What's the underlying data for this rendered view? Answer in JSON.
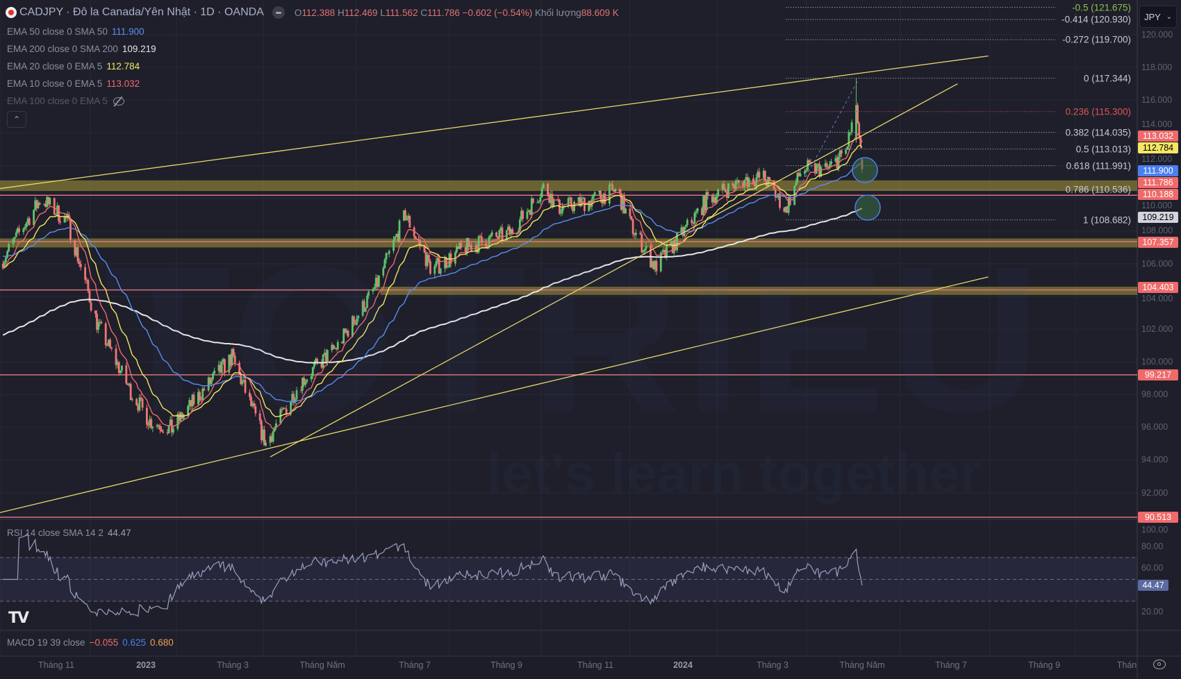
{
  "header": {
    "symbol": "CADJPY · Đô la Canada/Yên Nhật · 1D · OANDA",
    "ohlc": {
      "o_label": "O",
      "o": "112.388",
      "h_label": "H",
      "h": "112.469",
      "l_label": "L",
      "l": "111.562",
      "c_label": "C",
      "c": "111.786",
      "change": "−0.602 (−0.54%)",
      "vol_label": "Khối lượng",
      "vol": "88.609 K"
    }
  },
  "indicators": [
    {
      "label": "EMA 50 close 0 SMA 50",
      "value": "111.900",
      "color": "#5b8ff0"
    },
    {
      "label": "EMA 200 close 0 SMA 200",
      "value": "109.219",
      "color": "#e6e6e6"
    },
    {
      "label": "EMA 20 close 0 EMA 5",
      "value": "112.784",
      "color": "#f5e663"
    },
    {
      "label": "EMA 10 close 0 EMA 5",
      "value": "113.032",
      "color": "#ef6a6a"
    },
    {
      "label": "EMA 100 close 0 EMA 5",
      "value": null,
      "hidden": true
    }
  ],
  "currency": "JPY",
  "price_axis": [
    "120.000",
    "118.000",
    "116.000",
    "114.000",
    "112.000",
    "110.000",
    "108.000",
    "106.000",
    "104.000",
    "102.000",
    "100.000",
    "98.000",
    "96.000",
    "94.000",
    "92.000"
  ],
  "price_tags": [
    {
      "value": "113.032",
      "price": 113.032,
      "bg": "#ef6a6a",
      "fg": "#ffffff"
    },
    {
      "value": "112.784",
      "price": 112.784,
      "bg": "#f5e663",
      "fg": "#000000"
    },
    {
      "value": "111.900",
      "price": 111.9,
      "bg": "#4a7ff0",
      "fg": "#ffffff"
    },
    {
      "value": "111.786",
      "price": 111.786,
      "bg": "#ef6a6a",
      "fg": "#ffffff"
    },
    {
      "value": "110.188",
      "price": 110.188,
      "bg": "#ef6a6a",
      "fg": "#ffffff"
    },
    {
      "value": "109.219",
      "price": 109.219,
      "bg": "#d1d4dc",
      "fg": "#000000"
    },
    {
      "value": "107.357",
      "price": 107.357,
      "bg": "#ef6a6a",
      "fg": "#ffffff"
    },
    {
      "value": "104.403",
      "price": 104.403,
      "bg": "#ef6a6a",
      "fg": "#ffffff"
    },
    {
      "value": "99.217",
      "price": 99.217,
      "bg": "#ef6a6a",
      "fg": "#ffffff"
    },
    {
      "value": "90.513",
      "price": 90.513,
      "bg": "#ef6a6a",
      "fg": "#ffffff"
    }
  ],
  "horizontal_lines": [
    110.188,
    107.357,
    104.403,
    99.217,
    90.513
  ],
  "zones": [
    {
      "from": 110.45,
      "to": 111.1,
      "start": "2022-09-24"
    },
    {
      "from": 107.0,
      "to": 107.55,
      "start": "2022-09-24"
    },
    {
      "from": 104.1,
      "to": 104.6,
      "start": "2023-06-10"
    }
  ],
  "trendlines": [
    {
      "from": [
        "2022-09-24",
        110.6
      ],
      "to": [
        "2024-07-28",
        118.7
      ]
    },
    {
      "from": [
        "2022-09-24",
        90.8
      ],
      "to": [
        "2024-07-28",
        105.2
      ]
    },
    {
      "from": [
        "2023-03-27",
        94.2
      ],
      "to": [
        "2024-07-07",
        117.0
      ]
    }
  ],
  "fib_levels": [
    {
      "label": "-0.5 (121.675)",
      "price": 121.675,
      "color": "#8bc34a"
    },
    {
      "label": "-0.414 (120.930)",
      "price": 120.93,
      "color": "#c8cad2"
    },
    {
      "label": "-0.272 (119.700)",
      "price": 119.7,
      "color": "#c8cad2"
    },
    {
      "label": "0 (117.344)",
      "price": 117.344,
      "color": "#c8cad2"
    },
    {
      "label": "0.236 (115.300)",
      "price": 115.3,
      "color": "#e05555"
    },
    {
      "label": "0.382 (114.035)",
      "price": 114.035,
      "color": "#c8cad2"
    },
    {
      "label": "0.5 (113.013)",
      "price": 113.013,
      "color": "#c8cad2"
    },
    {
      "label": "0.618 (111.991)",
      "price": 111.991,
      "color": "#c8cad2"
    },
    {
      "label": "0.786 (110.536)",
      "price": 110.536,
      "color": "#c8cad2"
    },
    {
      "label": "1 (108.682)",
      "price": 108.682,
      "color": "#c8cad2"
    }
  ],
  "price_path": [
    [
      "2022-09-24",
      106.0
    ],
    [
      "2022-10-22",
      110.0
    ],
    [
      "2022-11-09",
      108.6
    ],
    [
      "2022-11-29",
      102.4
    ],
    [
      "2022-12-22",
      98.2
    ],
    [
      "2023-01-04",
      96.4
    ],
    [
      "2023-01-19",
      95.9
    ],
    [
      "2023-02-04",
      97.7
    ],
    [
      "2023-03-01",
      100.3
    ],
    [
      "2023-03-24",
      95.0
    ],
    [
      "2023-04-16",
      98.7
    ],
    [
      "2023-05-12",
      101.0
    ],
    [
      "2023-06-07",
      104.6
    ],
    [
      "2023-06-27",
      109.0
    ],
    [
      "2023-07-15",
      105.6
    ],
    [
      "2023-08-07",
      107.0
    ],
    [
      "2023-09-07",
      107.9
    ],
    [
      "2023-09-30",
      110.8
    ],
    [
      "2023-10-08",
      109.4
    ],
    [
      "2023-10-29",
      109.8
    ],
    [
      "2023-11-18",
      110.5
    ],
    [
      "2023-11-28",
      108.3
    ],
    [
      "2023-12-14",
      105.8
    ],
    [
      "2023-12-29",
      107.4
    ],
    [
      "2024-01-19",
      110.0
    ],
    [
      "2024-02-13",
      111.1
    ],
    [
      "2024-02-26",
      111.3
    ],
    [
      "2024-03-12",
      109.3
    ],
    [
      "2024-03-23",
      111.8
    ],
    [
      "2024-04-10",
      111.8
    ],
    [
      "2024-04-22",
      112.9
    ],
    [
      "2024-04-29",
      115.7
    ],
    [
      "2024-05-03",
      111.786
    ]
  ],
  "rsi": {
    "label": "RSI 14 close SMA 14 2",
    "value": "44.47",
    "axis": [
      "100.00",
      "80.00",
      "60.00",
      "20.00"
    ]
  },
  "macd": {
    "label": "MACD 19 39 close",
    "v1": "−0.055",
    "v2": "0.625",
    "v3": "0.680"
  },
  "time_axis": [
    {
      "label": "Tháng 11",
      "bold": false
    },
    {
      "label": "2023",
      "bold": true
    },
    {
      "label": "Tháng 3",
      "bold": false
    },
    {
      "label": "Tháng Năm",
      "bold": false
    },
    {
      "label": "Tháng 7",
      "bold": false
    },
    {
      "label": "Tháng 9",
      "bold": false
    },
    {
      "label": "Tháng 11",
      "bold": false
    },
    {
      "label": "2024",
      "bold": true
    },
    {
      "label": "Tháng 3",
      "bold": false
    },
    {
      "label": "Tháng Năm",
      "bold": false
    },
    {
      "label": "Tháng 7",
      "bold": false
    },
    {
      "label": "Tháng 9",
      "bold": false
    },
    {
      "label": "Thán",
      "bold": false
    }
  ],
  "watermark": {
    "brand": "TOTRIEU",
    "slogan": "let's learn together"
  }
}
